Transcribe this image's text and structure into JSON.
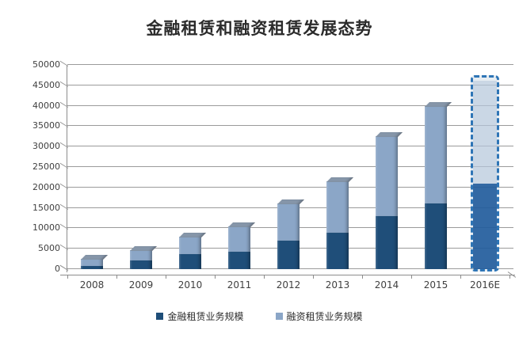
{
  "title": "金融租赁和融资租赁发展态势",
  "chart_data": {
    "type": "bar",
    "stacked": true,
    "title": "金融租赁和融资租赁发展态势",
    "categories": [
      "2008",
      "2009",
      "2010",
      "2011",
      "2012",
      "2013",
      "2014",
      "2015",
      "2016E"
    ],
    "series": [
      {
        "name": "金融租赁业务规模",
        "color": "#1f4e79",
        "values": [
          800,
          2200,
          3700,
          4300,
          7000,
          9000,
          13000,
          16000,
          21000
        ]
      },
      {
        "name": "融资租赁业务规模",
        "color": "#8ba6c7",
        "values": [
          1700,
          2400,
          4300,
          6100,
          9000,
          12500,
          19500,
          24000,
          25200
        ]
      }
    ],
    "totals": [
      2500,
      4600,
      8000,
      10400,
      16000,
      21500,
      32500,
      40000,
      46200
    ],
    "xlabel": "",
    "ylabel": "",
    "ylim": [
      0,
      50000
    ],
    "ytick_step": 5000,
    "yticks": [
      0,
      5000,
      10000,
      15000,
      20000,
      25000,
      30000,
      35000,
      40000,
      45000,
      50000
    ],
    "grid": true,
    "legend_position": "bottom",
    "forecast_category": "2016E",
    "forecast_style": {
      "border_color": "#2e75b6",
      "dark_fill": "rgba(26,86,153,0.88)",
      "light_fill": "rgba(178,197,218,0.55)"
    },
    "cap_color": "#8696a9",
    "gridline_color": "#9b9b9b"
  }
}
